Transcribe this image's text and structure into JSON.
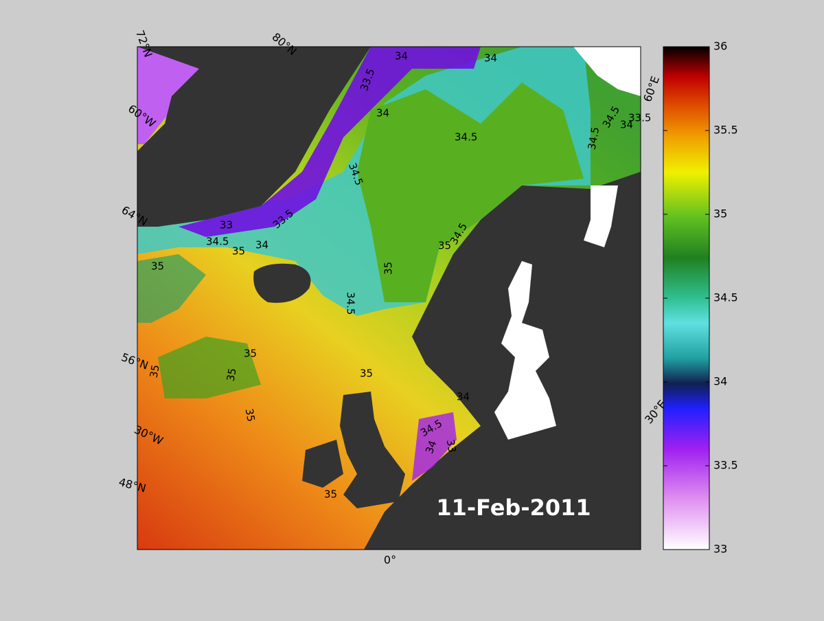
{
  "date_label": "11-Feb-2011",
  "graticule_labels": [
    "72°N",
    "80°N",
    "60°W",
    "64°N",
    "56°N",
    "30°W",
    "48°N",
    "0°",
    "30°E",
    "60°E"
  ],
  "contour_labels": [
    34,
    34,
    33.5,
    34,
    34.5,
    34.5,
    34.5,
    34.5,
    34,
    33.5,
    33,
    33.5,
    34.5,
    35,
    34,
    35,
    34.5,
    35,
    34.5,
    35,
    35,
    35,
    35,
    35,
    35,
    34,
    34.5,
    34,
    33,
    35
  ],
  "colorbar": {
    "lim": [
      33,
      36
    ],
    "ticks": [
      33,
      33.5,
      34,
      34.5,
      35,
      35.5,
      36
    ]
  }
}
